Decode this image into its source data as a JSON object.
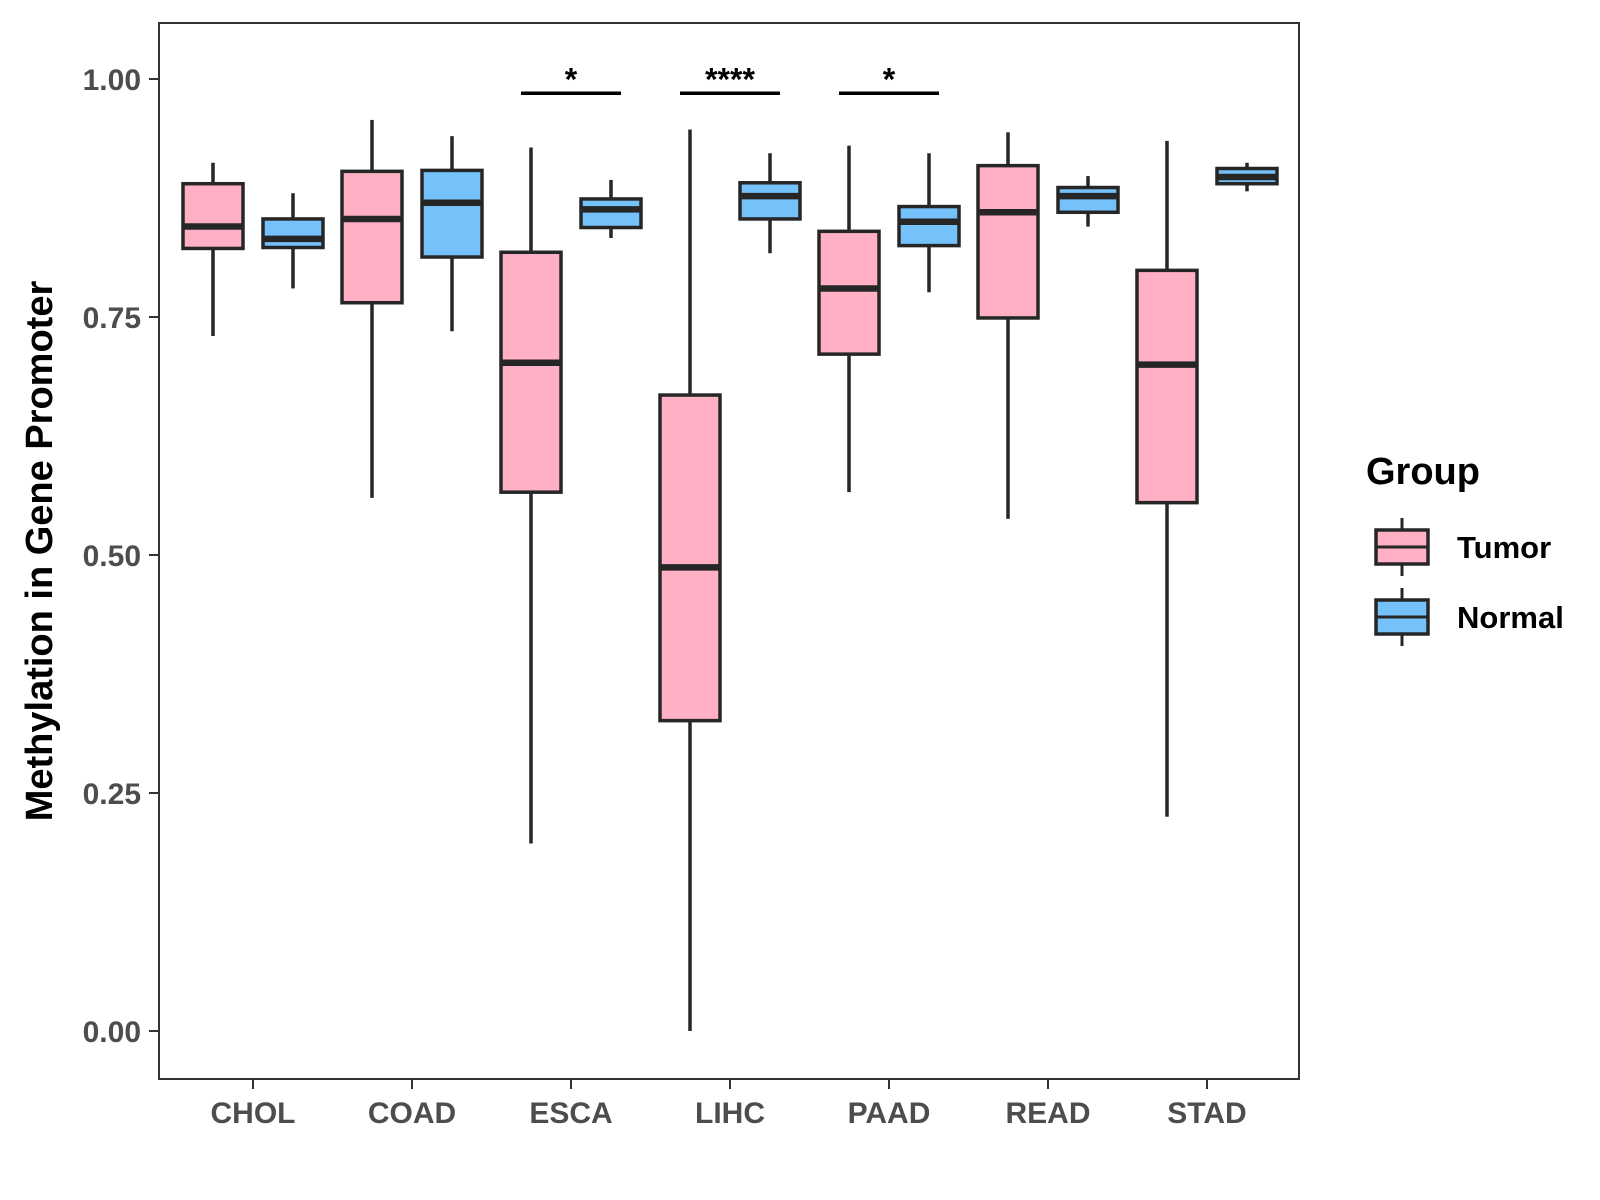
{
  "chart_data": {
    "type": "boxplot",
    "ylabel": "Methylation in Gene Promoter",
    "xlabel": "",
    "ylim": [
      -0.05,
      1.06
    ],
    "yticks": [
      0.0,
      0.25,
      0.5,
      0.75,
      1.0
    ],
    "ytick_labels": [
      "0.00",
      "0.25",
      "0.50",
      "0.75",
      "1.00"
    ],
    "categories": [
      "CHOL",
      "COAD",
      "ESCA",
      "LIHC",
      "PAAD",
      "READ",
      "STAD"
    ],
    "legend": {
      "title": "Group",
      "position": "right",
      "entries": [
        {
          "name": "Tumor",
          "color": "#FFB0C4"
        },
        {
          "name": "Normal",
          "color": "#75C1F9"
        }
      ]
    },
    "series": [
      {
        "name": "Tumor",
        "color": "#FFB0C4",
        "boxes": [
          {
            "category": "CHOL",
            "min": 0.73,
            "q1": 0.822,
            "median": 0.845,
            "q3": 0.89,
            "max": 0.912
          },
          {
            "category": "COAD",
            "min": 0.56,
            "q1": 0.765,
            "median": 0.853,
            "q3": 0.903,
            "max": 0.957
          },
          {
            "category": "ESCA",
            "min": 0.197,
            "q1": 0.566,
            "median": 0.702,
            "q3": 0.818,
            "max": 0.928
          },
          {
            "category": "LIHC",
            "min": 0.0,
            "q1": 0.326,
            "median": 0.487,
            "q3": 0.668,
            "max": 0.947
          },
          {
            "category": "PAAD",
            "min": 0.566,
            "q1": 0.711,
            "median": 0.78,
            "q3": 0.84,
            "max": 0.93
          },
          {
            "category": "READ",
            "min": 0.538,
            "q1": 0.749,
            "median": 0.86,
            "q3": 0.909,
            "max": 0.944
          },
          {
            "category": "STAD",
            "min": 0.225,
            "q1": 0.555,
            "median": 0.7,
            "q3": 0.799,
            "max": 0.935
          }
        ]
      },
      {
        "name": "Normal",
        "color": "#75C1F9",
        "boxes": [
          {
            "category": "CHOL",
            "min": 0.78,
            "q1": 0.823,
            "median": 0.832,
            "q3": 0.853,
            "max": 0.88
          },
          {
            "category": "COAD",
            "min": 0.735,
            "q1": 0.813,
            "median": 0.87,
            "q3": 0.904,
            "max": 0.94
          },
          {
            "category": "ESCA",
            "min": 0.833,
            "q1": 0.844,
            "median": 0.863,
            "q3": 0.874,
            "max": 0.894
          },
          {
            "category": "LIHC",
            "min": 0.817,
            "q1": 0.853,
            "median": 0.877,
            "q3": 0.891,
            "max": 0.922
          },
          {
            "category": "PAAD",
            "min": 0.776,
            "q1": 0.825,
            "median": 0.85,
            "q3": 0.866,
            "max": 0.922
          },
          {
            "category": "READ",
            "min": 0.845,
            "q1": 0.86,
            "median": 0.877,
            "q3": 0.886,
            "max": 0.898
          },
          {
            "category": "STAD",
            "min": 0.882,
            "q1": 0.89,
            "median": 0.897,
            "q3": 0.906,
            "max": 0.912
          }
        ]
      }
    ],
    "significance": [
      {
        "category": "ESCA",
        "label": "*",
        "y": 0.985
      },
      {
        "category": "LIHC",
        "label": "****",
        "y": 0.985
      },
      {
        "category": "PAAD",
        "label": "*",
        "y": 0.985
      }
    ]
  }
}
